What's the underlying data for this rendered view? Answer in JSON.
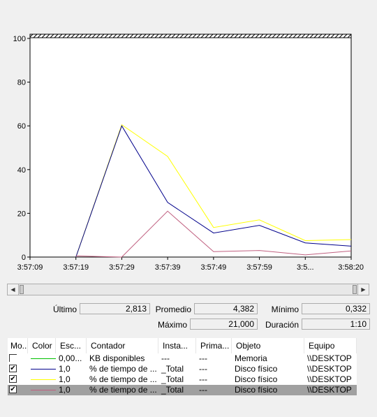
{
  "chart_data": {
    "type": "line",
    "x": [
      "3:57:09",
      "3:57:19",
      "3:57:29",
      "3:57:39",
      "3:57:49",
      "3:57:59",
      "3:5...",
      "3:58:20"
    ],
    "ylim": [
      0,
      100
    ],
    "yticks": [
      0,
      20,
      40,
      60,
      80,
      100
    ],
    "grid": false,
    "series": [
      {
        "name": "% de tiempo de ...",
        "color": "#ffff00",
        "values": [
          null,
          0,
          60.5,
          46,
          13.5,
          17,
          7.5,
          8
        ]
      },
      {
        "name": "% de tiempo de ...",
        "color": "#00008b",
        "values": [
          null,
          0,
          60,
          25,
          11,
          14.5,
          6.5,
          5
        ]
      },
      {
        "name": "% de tiempo de ...",
        "color": "#c06080",
        "values": [
          null,
          0.5,
          0,
          21,
          2.5,
          3,
          1,
          2.8
        ]
      }
    ]
  },
  "stats": {
    "ultimo_label": "Último",
    "ultimo": "2,813",
    "promedio_label": "Promedio",
    "promedio": "4,382",
    "minimo_label": "Mínimo",
    "minimo": "0,332",
    "maximo_label": "Máximo",
    "maximo": "21,000",
    "duracion_label": "Duración",
    "duracion": "1:10"
  },
  "table": {
    "headers": [
      "Mo...",
      "Color",
      "Esc...",
      "Contador",
      "Insta...",
      "Prima...",
      "Objeto",
      "Equipo"
    ],
    "rows": [
      {
        "checked": false,
        "color": "#00c000",
        "escala": "0,00...",
        "contador": "KB disponibles",
        "instancia": "---",
        "primario": "---",
        "objeto": "Memoria",
        "equipo": "\\\\DESKTOP"
      },
      {
        "checked": true,
        "color": "#00008b",
        "escala": "1,0",
        "contador": "% de tiempo de ...",
        "instancia": "_Total",
        "primario": "---",
        "objeto": "Disco físico",
        "equipo": "\\\\DESKTOP"
      },
      {
        "checked": true,
        "color": "#ffff00",
        "escala": "1,0",
        "contador": "% de tiempo de ...",
        "instancia": "_Total",
        "primario": "---",
        "objeto": "Disco físico",
        "equipo": "\\\\DESKTOP"
      },
      {
        "checked": true,
        "color": "#c06080",
        "escala": "1,0",
        "contador": "% de tiempo de ...",
        "instancia": "_Total",
        "primario": "---",
        "objeto": "Disco físico",
        "equipo": "\\\\DESKTOP"
      }
    ]
  }
}
